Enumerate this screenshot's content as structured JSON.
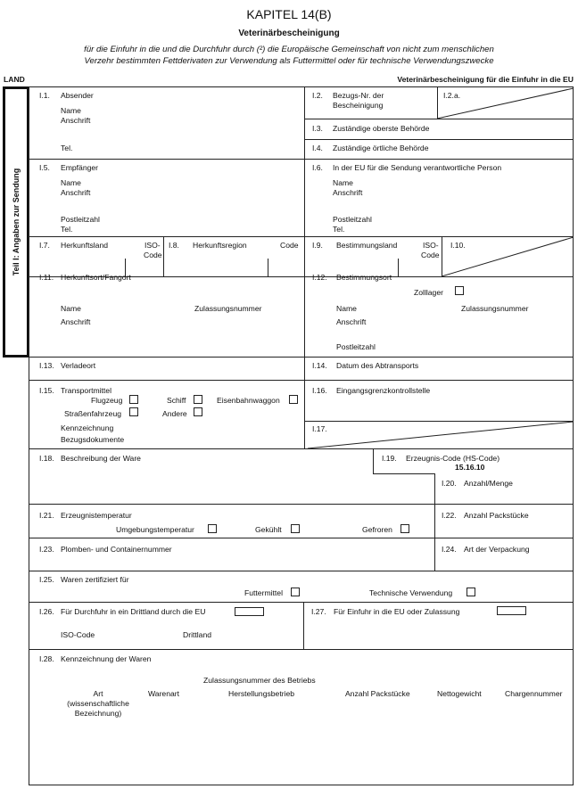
{
  "header": {
    "chapter": "KAPITEL 14(B)",
    "title": "Veterinärbescheinigung",
    "subtitle_line1": "für die Einfuhr in die und die Durchfuhr durch (²) die Europäische Gemeinschaft von nicht zum menschlichen",
    "subtitle_line2": "Verzehr bestimmten Fettderivaten zur Verwendung als Futtermittel oder für technische Verwendungszwecke",
    "land": "LAND",
    "right_label": "Veterinärbescheinigung für die Einfuhr in die EU"
  },
  "side_label": "Teil I: Angaben zur Sendung",
  "fields": {
    "i1": {
      "num": "I.1.",
      "label": "Absender",
      "name": "Name",
      "address": "Anschrift",
      "tel": "Tel."
    },
    "i2": {
      "num": "I.2.",
      "label1": "Bezugs-Nr. der",
      "label2": "Bescheinigung"
    },
    "i2a": {
      "num": "I.2.a."
    },
    "i3": {
      "num": "I.3.",
      "label": "Zuständige oberste Behörde"
    },
    "i4": {
      "num": "I.4.",
      "label": "Zuständige örtliche Behörde"
    },
    "i5": {
      "num": "I.5.",
      "label": "Empfänger",
      "name": "Name",
      "address": "Anschrift",
      "postcode": "Postleitzahl",
      "tel": "Tel."
    },
    "i6": {
      "num": "I.6.",
      "label": "In der EU für die Sendung verantwortliche Person",
      "name": "Name",
      "address": "Anschrift",
      "postcode": "Postleitzahl",
      "tel": "Tel."
    },
    "i7": {
      "num": "I.7.",
      "label": "Herkunftsland",
      "iso1": "ISO-",
      "iso2": "Code"
    },
    "i8": {
      "num": "I.8.",
      "label": "Herkunftsregion",
      "code": "Code"
    },
    "i9": {
      "num": "I.9.",
      "label": "Bestimmungsland",
      "iso1": "ISO-",
      "iso2": "Code"
    },
    "i10": {
      "num": "I.10."
    },
    "i11": {
      "num": "I.11.",
      "label": "Herkunftsort/Fangort",
      "name": "Name",
      "approval": "Zulassungsnummer",
      "address": "Anschrift"
    },
    "i12": {
      "num": "I.12.",
      "label": "Bestimmungsort",
      "customs": "Zolllager",
      "name": "Name",
      "approval": "Zulassungsnummer",
      "address": "Anschrift",
      "postcode": "Postleitzahl"
    },
    "i13": {
      "num": "I.13.",
      "label": "Verladeort"
    },
    "i14": {
      "num": "I.14.",
      "label": "Datum des Abtransports"
    },
    "i15": {
      "num": "I.15.",
      "label": "Transportmittel",
      "plane": "Flugzeug",
      "ship": "Schiff",
      "rail": "Eisenbahnwaggon",
      "road": "Straßenfahrzeug",
      "other": "Andere",
      "ident": "Kennzeichnung",
      "docs": "Bezugsdokumente"
    },
    "i16": {
      "num": "I.16.",
      "label": "Eingangsgrenzkontrollstelle"
    },
    "i17": {
      "num": "I.17."
    },
    "i18": {
      "num": "I.18.",
      "label": "Beschreibung der Ware"
    },
    "i19": {
      "num": "I.19.",
      "label": "Erzeugnis-Code (HS-Code)",
      "value": "15.16.10"
    },
    "i20": {
      "num": "I.20.",
      "label": "Anzahl/Menge"
    },
    "i21": {
      "num": "I.21.",
      "label": "Erzeugnistemperatur",
      "ambient": "Umgebungstemperatur",
      "chilled": "Gekühlt",
      "frozen": "Gefroren"
    },
    "i22": {
      "num": "I.22.",
      "label": "Anzahl Packstücke"
    },
    "i23": {
      "num": "I.23.",
      "label": "Plomben- und Containernummer"
    },
    "i24": {
      "num": "I.24.",
      "label": "Art der Verpackung"
    },
    "i25": {
      "num": "I.25.",
      "label": "Waren zertifiziert für",
      "feed": "Futtermittel",
      "technical": "Technische Verwendung"
    },
    "i26": {
      "num": "I.26.",
      "label": "Für Durchfuhr in ein Drittland durch die EU",
      "iso": "ISO-Code",
      "third": "Drittland"
    },
    "i27": {
      "num": "I.27.",
      "label": "Für Einfuhr in die EU oder Zulassung"
    },
    "i28": {
      "num": "I.28.",
      "label": "Kennzeichnung der Waren",
      "group_header": "Zulassungsnummer des Betriebs",
      "columns": [
        "Art",
        "(wissenschaftliche",
        "Bezeichnung)",
        "Warenart",
        "Herstellungsbetrieb",
        "Anzahl Packstücke",
        "Nettogewicht",
        "Chargennummer"
      ]
    }
  }
}
